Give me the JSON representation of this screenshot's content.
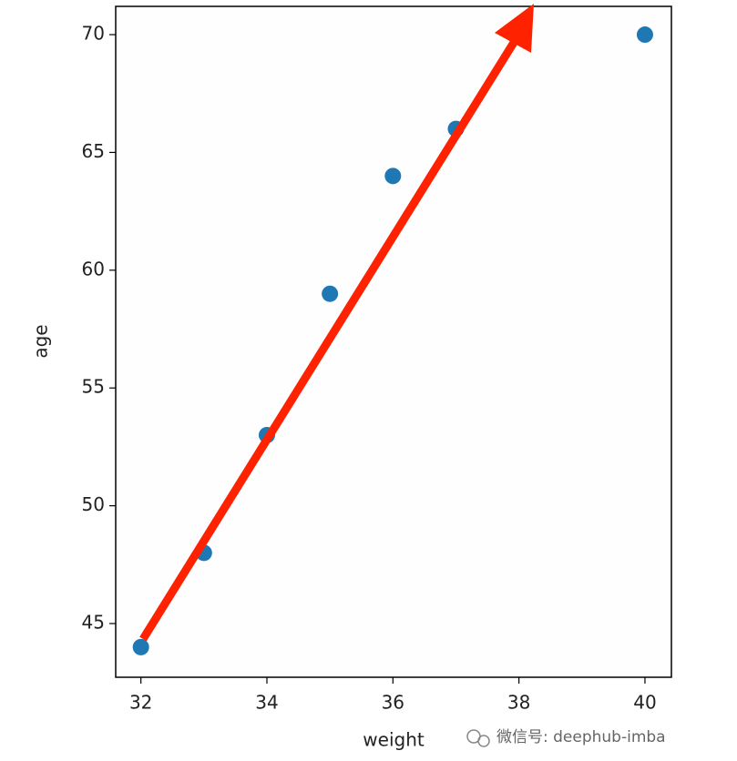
{
  "chart_data": {
    "type": "scatter",
    "x_label": "weight",
    "y_label": "age",
    "x": [
      32,
      33,
      34,
      35,
      36,
      37,
      40
    ],
    "values": [
      44,
      48,
      53,
      59,
      64,
      66,
      70
    ],
    "color": "#1f77b4",
    "xlim": [
      31.6,
      40.42
    ],
    "xticks": [
      32,
      34,
      36,
      38,
      40
    ],
    "ylim": [
      42.72,
      71.2
    ],
    "yticks": [
      45,
      50,
      55,
      60,
      65,
      70
    ],
    "watermark": "微信号: deephub-imba"
  }
}
